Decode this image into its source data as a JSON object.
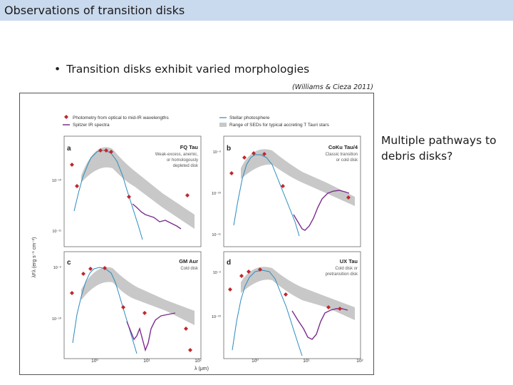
{
  "slide": {
    "title": "Observations of transition disks",
    "bullet": "Transition disks exhibit varied morphologies",
    "bullet_marker": "•",
    "citation": "(Williams & Cieza 2011)",
    "side_note": "Multiple pathways to debris disks?"
  },
  "figure": {
    "legend": {
      "photometry": "Photometry from optical to mid-IR wavelengths",
      "spitzer": "Spitzer IR spectra",
      "stellar": "Stellar photosphere",
      "range": "Range of SEDs for typical accreting T Tauri stars"
    },
    "y_label": "λFλ (erg s⁻¹ cm⁻²)",
    "x_label": "λ (μm)",
    "x_ticks": [
      "10⁰",
      "10¹",
      "10²"
    ],
    "colors": {
      "photometry": "#c0282d",
      "spitzer": "#7b2d8e",
      "stellar": "#2b8bbf",
      "range": "#c8c8c8"
    },
    "panels": [
      {
        "letter": "a",
        "name": "FQ Tau",
        "desc": [
          "Weak-excess, anemic,",
          "or homologously",
          "depleted disk"
        ],
        "y_ticks": [
          "10⁻¹⁰",
          "10⁻¹¹"
        ]
      },
      {
        "letter": "b",
        "name": "CoKu Tau/4",
        "desc": [
          "Classic transition",
          "or cold disk"
        ],
        "y_ticks": [
          "10⁻⁹",
          "10⁻¹⁰",
          "10⁻¹¹"
        ]
      },
      {
        "letter": "c",
        "name": "GM Aur",
        "desc": [
          "Cold disk"
        ],
        "y_ticks": [
          "10⁻⁹",
          "10⁻¹⁰"
        ]
      },
      {
        "letter": "d",
        "name": "UX Tau",
        "desc": [
          "Cold disk or",
          "pretransition disk"
        ],
        "y_ticks": [
          "10⁻⁹",
          "10⁻¹⁰"
        ]
      }
    ]
  }
}
